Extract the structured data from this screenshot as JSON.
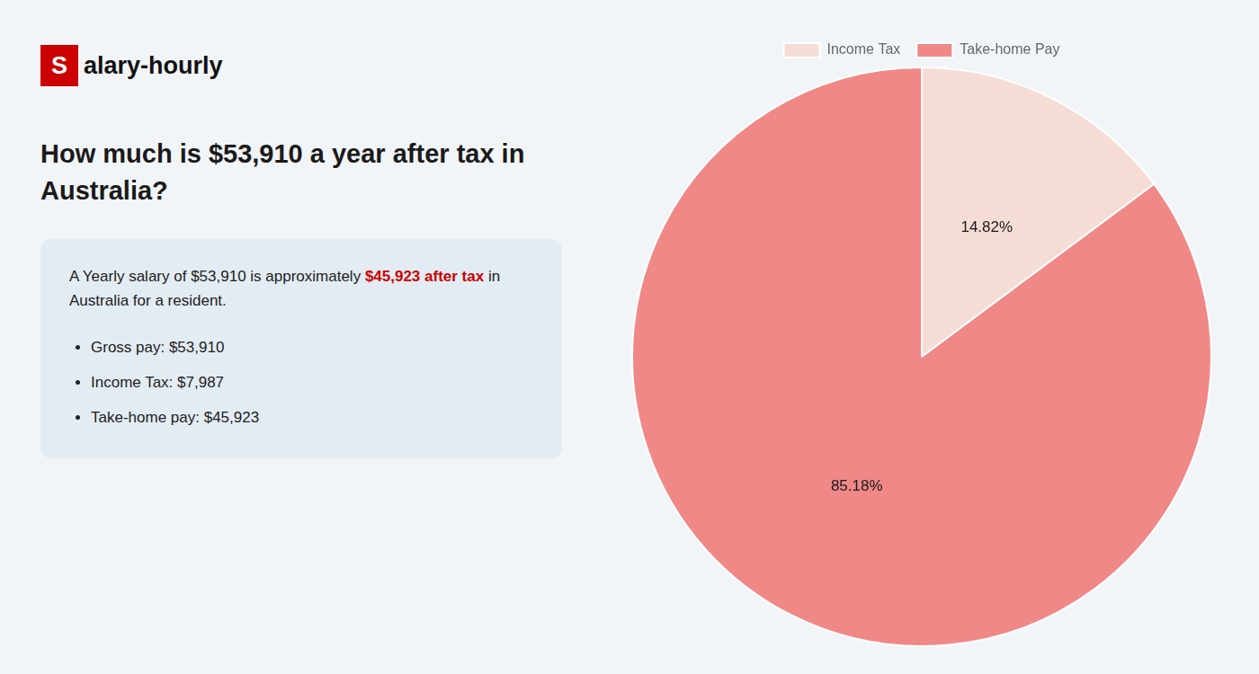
{
  "chart_data": {
    "type": "pie",
    "title": "How much is $53,910 a year after tax in\nAustralia?",
    "annotations": [
      {
        "text": "S",
        "color": "#cc0000"
      },
      {
        "text": "alary-hourly"
      },
      {
        "text": "A Yearly salary of $53,910 is approximately "
      },
      {
        "text": "$45,923 after tax",
        "color": "#cc0000"
      },
      {
        "text": " in"
      },
      {
        "text": "Australia for a resident."
      },
      {
        "text": "Gross pay: $53,910"
      },
      {
        "text": "Income Tax: $7,987"
      },
      {
        "text": "Take-home pay: $45,923"
      }
    ],
    "categories": [
      "Income Tax",
      "Take-home Pay"
    ],
    "values": [
      14.82,
      85.18
    ],
    "value_labels": [
      "14.82%",
      "85.18%"
    ],
    "colors": [
      "#f5ddd5",
      "#f08888"
    ],
    "data_labels": true,
    "legend": "top"
  }
}
